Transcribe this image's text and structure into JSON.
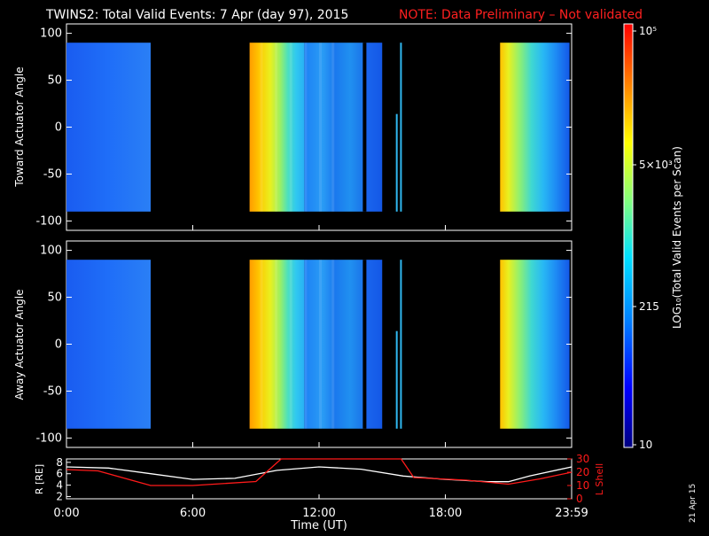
{
  "header": {
    "title": "TWINS2: Total Valid Events:  7 Apr (day  97), 2015",
    "note": "NOTE: Data Preliminary – Not validated",
    "note_color": "#ff2020"
  },
  "corner_date": "21 Apr 15",
  "chart_data": [
    {
      "type": "heatmap",
      "ylabel": "Toward Actuator Angle",
      "yticks": [
        "100",
        "50",
        "0",
        "-50",
        "-100"
      ],
      "ylim": [
        -110,
        110
      ],
      "data_ylim": [
        -90,
        90
      ],
      "xlim_hours": [
        0,
        24
      ],
      "blocks": [
        {
          "start_h": 0.0,
          "end_h": 4.0,
          "level": "low"
        },
        {
          "start_h": 8.7,
          "end_h": 11.3,
          "level": "high"
        },
        {
          "start_h": 11.3,
          "end_h": 14.2,
          "level": "low-mid"
        },
        {
          "start_h": 14.2,
          "end_h": 15.0,
          "level": "low"
        },
        {
          "start_h": 20.6,
          "end_h": 23.9,
          "level": "mixed"
        }
      ],
      "spikes_h": [
        15.65,
        15.85
      ]
    },
    {
      "type": "heatmap",
      "ylabel": "Away Actuator Angle",
      "yticks": [
        "100",
        "50",
        "0",
        "-50",
        "-100"
      ],
      "ylim": [
        -110,
        110
      ],
      "data_ylim": [
        -90,
        90
      ],
      "xlim_hours": [
        0,
        24
      ],
      "blocks": [
        {
          "start_h": 0.0,
          "end_h": 4.0,
          "level": "low"
        },
        {
          "start_h": 8.7,
          "end_h": 11.3,
          "level": "high"
        },
        {
          "start_h": 11.3,
          "end_h": 14.2,
          "level": "low-mid"
        },
        {
          "start_h": 14.2,
          "end_h": 15.0,
          "level": "low"
        },
        {
          "start_h": 20.6,
          "end_h": 23.9,
          "level": "mixed"
        }
      ],
      "spikes_h": [
        15.65,
        15.85
      ]
    },
    {
      "type": "line",
      "ylabel_left": "R [RE]",
      "ylabel_right": "L Shell",
      "left_ticks": [
        "8",
        "6",
        "4",
        "2"
      ],
      "right_ticks": [
        "30",
        "20",
        "10",
        "0"
      ],
      "xlabel": "Time (UT)",
      "xticks": [
        "0:00",
        "6:00",
        "12:00",
        "18:00",
        "23:59"
      ],
      "series": [
        {
          "color": "#ffffff",
          "x_hours": [
            0,
            2,
            4,
            6,
            8,
            10,
            12,
            14,
            16,
            18,
            20,
            21,
            22,
            24
          ],
          "y_R": [
            7.2,
            7.0,
            6.0,
            5.0,
            5.2,
            6.6,
            7.2,
            6.8,
            5.6,
            5.0,
            4.6,
            4.6,
            5.6,
            7.2
          ]
        },
        {
          "color": "#ff1a1a",
          "x_hours": [
            0,
            1.5,
            4,
            6,
            9,
            10.2,
            15.9,
            16.5,
            19,
            21,
            22.5,
            24
          ],
          "y_L": [
            22,
            21,
            10,
            10,
            13,
            30,
            30,
            16,
            14,
            11,
            15,
            20
          ],
          "clipped_interval_hours": [
            10.2,
            15.9
          ]
        }
      ]
    }
  ],
  "colorbar": {
    "ticks": [
      "10⁵",
      "5×10³",
      "215",
      "10"
    ],
    "label": "LOG₁₀(Total Valid Events per Scan)",
    "colors": [
      "#000080",
      "#0000ff",
      "#0080ff",
      "#00ffff",
      "#80ff80",
      "#ffff00",
      "#ff8000",
      "#ff0000"
    ]
  }
}
